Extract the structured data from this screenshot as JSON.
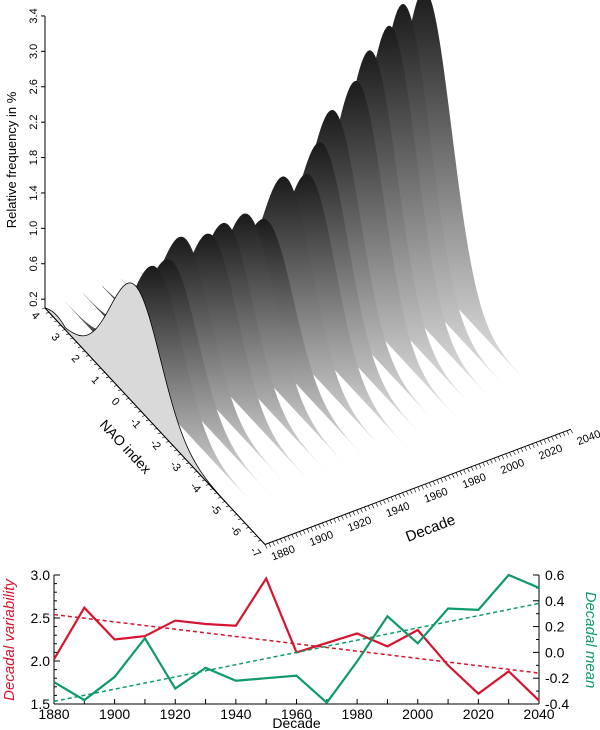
{
  "chart_data": [
    {
      "type": "area",
      "title": "",
      "ylabel": "Relative frequency in %",
      "xlabel": "NAO index",
      "zlabel": "Decade",
      "ylim": [
        0.2,
        3.4
      ],
      "y_ticks": [
        "0.2",
        "0.6",
        "1.0",
        "1.4",
        "1.8",
        "2.2",
        "2.6",
        "3.0",
        "3.4"
      ],
      "y_tick_values": [
        0.2,
        0.6,
        1.0,
        1.4,
        1.8,
        2.2,
        2.6,
        3.0,
        3.4
      ],
      "nao_ticks": [
        "4",
        "3",
        "2",
        "1",
        "0",
        "-1",
        "-2",
        "-3",
        "-4",
        "-5",
        "-6",
        "-7"
      ],
      "nao_tick_values": [
        4,
        3,
        2,
        1,
        0,
        -1,
        -2,
        -3,
        -4,
        -5,
        -6,
        -7
      ],
      "decade_ticks": [
        "1880",
        "1900",
        "1920",
        "1940",
        "1960",
        "1980",
        "2000",
        "2020",
        "2040"
      ],
      "decades": [
        1880,
        1890,
        1900,
        1910,
        1920,
        1930,
        1940,
        1950,
        1960,
        1970,
        1980,
        1990,
        2000,
        2010,
        2020,
        2030,
        2040
      ],
      "peak_frequency_estimate": [
        1.45,
        1.6,
        1.55,
        1.65,
        1.7,
        1.7,
        1.75,
        1.6,
        2.0,
        2.0,
        2.2,
        2.4,
        2.7,
        2.9,
        3.1,
        3.2,
        3.3
      ]
    },
    {
      "type": "line",
      "xlabel": "Decade",
      "ylabel_left": "Decadal variability",
      "ylabel_right": "Decadal mean",
      "x": [
        1880,
        1890,
        1900,
        1910,
        1920,
        1930,
        1940,
        1950,
        1960,
        1970,
        1980,
        1990,
        2000,
        2010,
        2020,
        2030,
        2040
      ],
      "x_ticks": [
        "1880",
        "1900",
        "1920",
        "1940",
        "1960",
        "1980",
        "2000",
        "2020",
        "2040"
      ],
      "left_ticks": [
        "1.5",
        "2.0",
        "2.5",
        "3.0"
      ],
      "right_ticks": [
        "-0.4",
        "-0.2",
        "0.0",
        "0.2",
        "0.4",
        "0.6"
      ],
      "ylim_left": [
        1.5,
        3.0
      ],
      "ylim_right": [
        -0.4,
        0.6
      ],
      "series": [
        {
          "name": "Decadal variability",
          "axis": "left",
          "color": "#d7142e",
          "values": [
            2.02,
            2.62,
            2.25,
            2.29,
            2.47,
            2.43,
            2.41,
            2.96,
            2.1,
            2.21,
            2.32,
            2.17,
            2.36,
            1.95,
            1.62,
            1.88,
            1.54
          ],
          "trend": [
            2.54,
            1.86
          ]
        },
        {
          "name": "Decadal mean",
          "axis": "right",
          "color": "#0f9a6a",
          "values": [
            -0.23,
            -0.37,
            -0.19,
            0.11,
            -0.28,
            -0.12,
            -0.22,
            -0.2,
            -0.18,
            -0.39,
            -0.07,
            0.28,
            0.07,
            0.34,
            0.33,
            0.6,
            0.5
          ],
          "trend": [
            -0.38,
            0.38
          ]
        }
      ]
    }
  ]
}
